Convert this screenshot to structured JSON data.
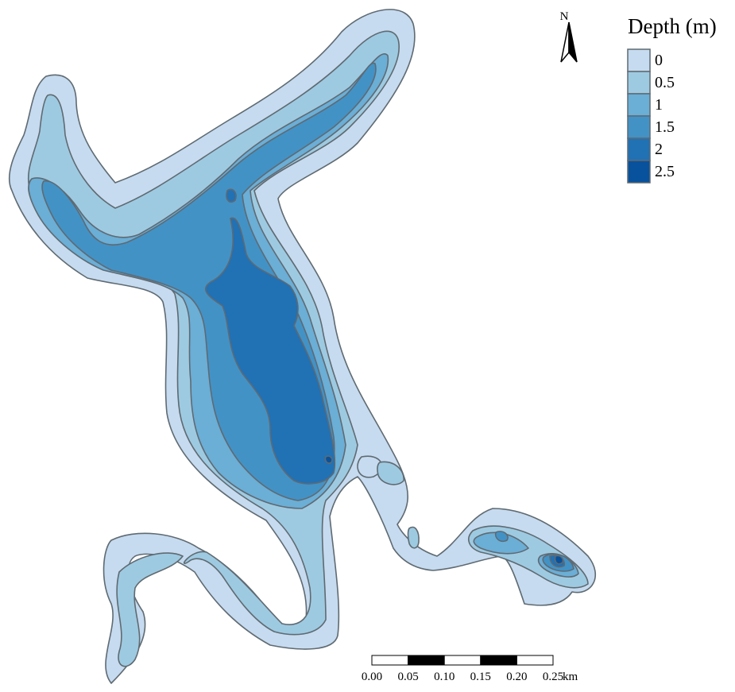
{
  "legend": {
    "title": "Depth (m)",
    "items": [
      {
        "label": "0",
        "color": "#c6dbef"
      },
      {
        "label": "0.5",
        "color": "#9ecae1"
      },
      {
        "label": "1",
        "color": "#6baed6"
      },
      {
        "label": "1.5",
        "color": "#4292c6"
      },
      {
        "label": "2",
        "color": "#2171b5"
      },
      {
        "label": "2.5",
        "color": "#08519c"
      }
    ]
  },
  "north_arrow": {
    "label": "N"
  },
  "scale_bar": {
    "ticks": [
      "0.00",
      "0.05",
      "0.10",
      "0.15",
      "0.20",
      "0.25"
    ],
    "unit": "km"
  }
}
